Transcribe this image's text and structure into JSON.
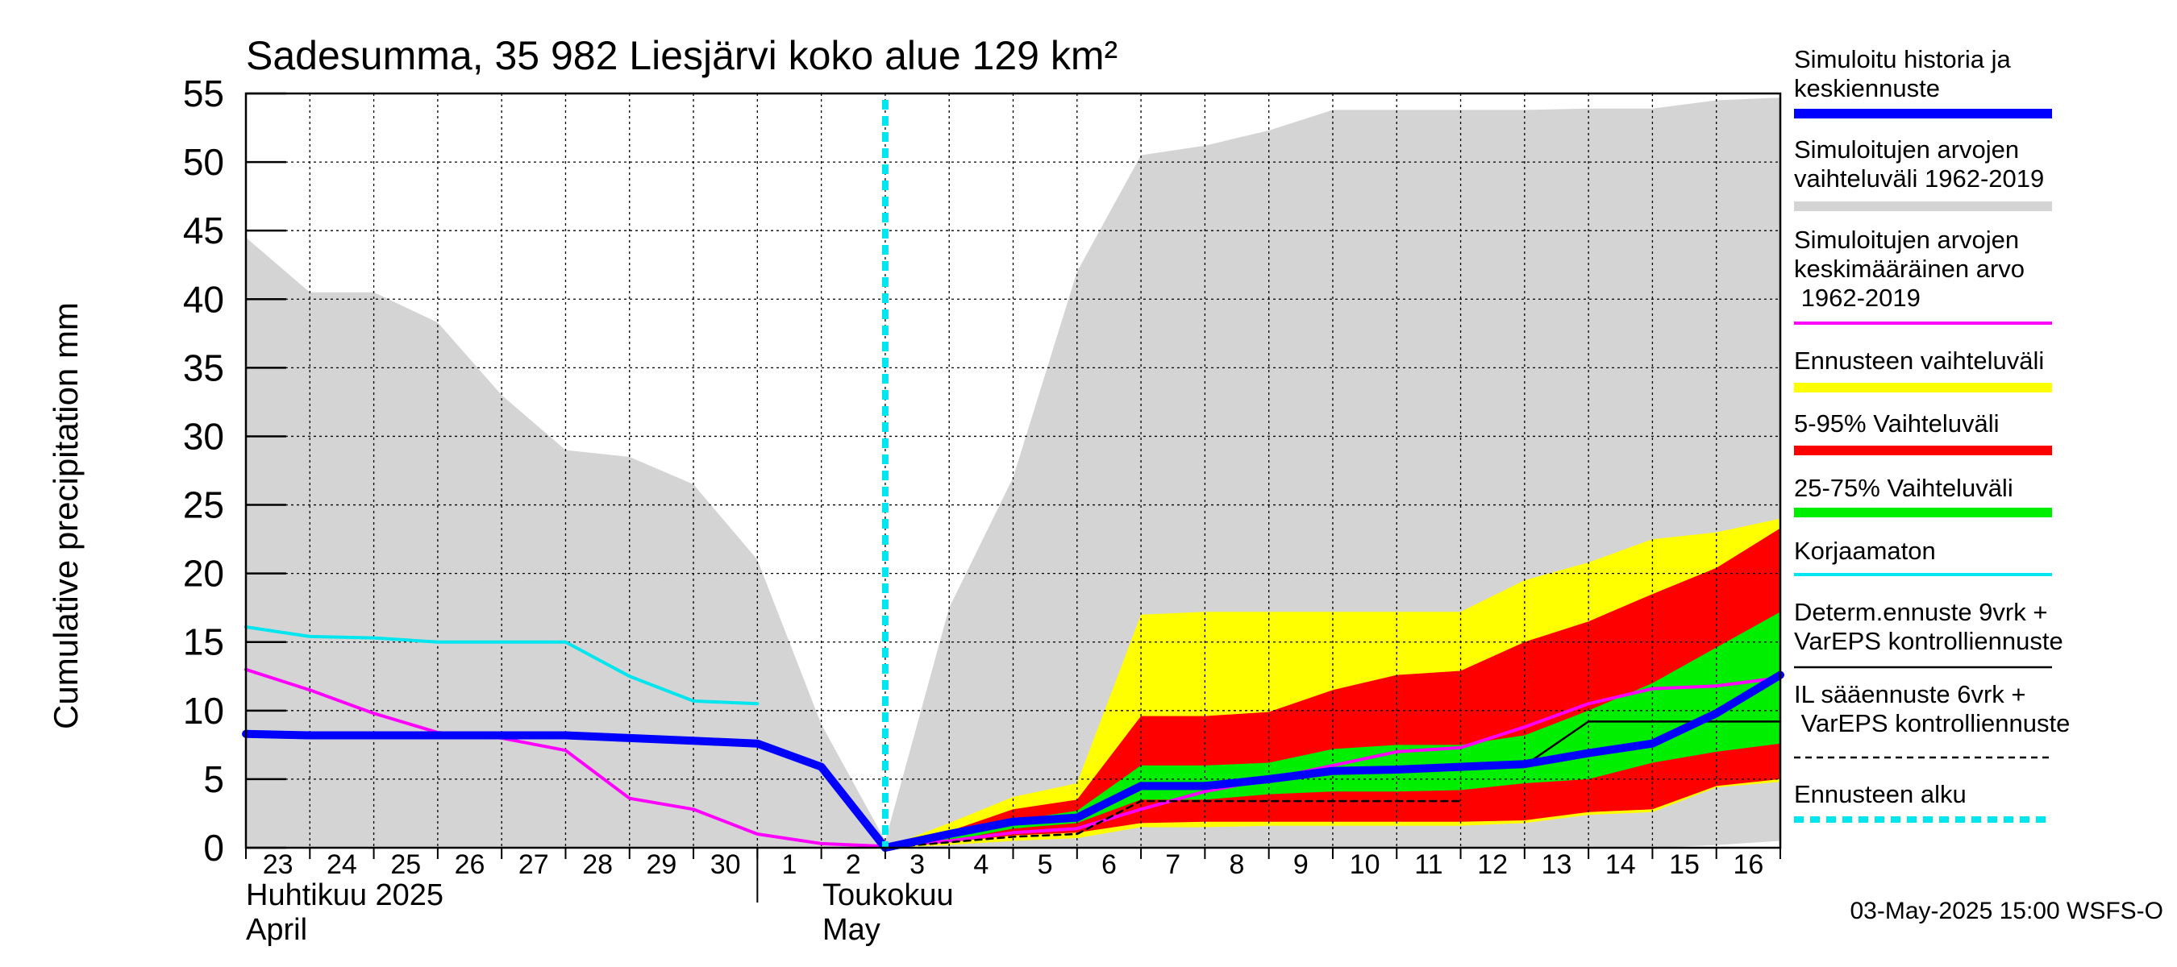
{
  "chart_data": {
    "type": "area",
    "title": "Sadesumma, 35 982 Liesjärvi koko alue 129 km²",
    "ylabel": "Cumulative precipitation   mm",
    "ylim": [
      0,
      55
    ],
    "yticks": [
      0,
      5,
      10,
      15,
      20,
      25,
      30,
      35,
      40,
      45,
      50,
      55
    ],
    "grid": true,
    "x_day_labels": [
      "23",
      "24",
      "25",
      "26",
      "27",
      "28",
      "29",
      "30",
      "1",
      "2",
      "3",
      "4",
      "5",
      "6",
      "7",
      "8",
      "9",
      "10",
      "11",
      "12",
      "13",
      "14",
      "15",
      "16"
    ],
    "month_labels": [
      {
        "line1": "Huhtikuu  2025",
        "line2": "April",
        "at": "2025-04-23"
      },
      {
        "line1": "Toukokuu",
        "line2": "May",
        "at": "2025-05-03"
      }
    ],
    "x_start": "2025-04-23",
    "x_end": "2025-05-17",
    "forecast_start": "2025-05-03",
    "timestamp": "03-May-2025 15:00 WSFS-O",
    "legend": [
      {
        "label": "Simuloitu historia ja keskiennuste",
        "color": "#0000ff",
        "style": "thick"
      },
      {
        "label": "Simuloitujen arvojen vaihteluväli 1962-2019",
        "color": "#d4d4d4",
        "style": "thick"
      },
      {
        "label": "Simuloitujen arvojen keskimääräinen arvo    1962-2019",
        "color": "#ff00ff",
        "style": "line"
      },
      {
        "label": "Ennusteen vaihteluväli",
        "color": "#ffff00",
        "style": "thick"
      },
      {
        "label": "5-95% Vaihteluväli",
        "color": "#ff0000",
        "style": "thick"
      },
      {
        "label": "25-75% Vaihteluväli",
        "color": "#00ee00",
        "style": "thick"
      },
      {
        "label": "Korjaamaton",
        "color": "#00e5ee",
        "style": "line"
      },
      {
        "label": "Determ.ennuste 9vrk + VarEPS kontrolliennuste",
        "color": "#000000",
        "style": "thin"
      },
      {
        "label": "IL sääennuste 6vrk  +   VarEPS kontrolliennuste",
        "color": "#000000",
        "style": "dashed"
      },
      {
        "label": "Ennusteen alku",
        "color": "#00e5ee",
        "style": "dotted"
      }
    ],
    "series": [
      {
        "key": "hist_range",
        "kind": "band",
        "x": [
          "2025-04-23",
          "2025-04-24",
          "2025-04-25",
          "2025-04-26",
          "2025-04-27",
          "2025-04-28",
          "2025-04-29",
          "2025-04-30",
          "2025-05-01",
          "2025-05-02",
          "2025-05-03",
          "2025-05-04",
          "2025-05-05",
          "2025-05-06",
          "2025-05-07",
          "2025-05-08",
          "2025-05-09",
          "2025-05-10",
          "2025-05-11",
          "2025-05-12",
          "2025-05-13",
          "2025-05-14",
          "2025-05-15",
          "2025-05-16",
          "2025-05-17"
        ],
        "upper": [
          44.5,
          40.5,
          40.5,
          38.3,
          33.0,
          29.0,
          28.5,
          26.5,
          21.0,
          9.0,
          0.5,
          17.5,
          27.0,
          42.0,
          50.5,
          51.2,
          52.3,
          53.8,
          53.8,
          53.8,
          53.8,
          53.9,
          53.9,
          54.5,
          54.7
        ],
        "lower": [
          0,
          0,
          0,
          0,
          0,
          0,
          0,
          0,
          0,
          0,
          0,
          0,
          0,
          0,
          0,
          0,
          0,
          0,
          0,
          0,
          0,
          0,
          0,
          0.2,
          0.5
        ]
      },
      {
        "key": "ens_range",
        "kind": "band",
        "x": [
          "2025-05-03",
          "2025-05-04",
          "2025-05-05",
          "2025-05-06",
          "2025-05-07",
          "2025-05-08",
          "2025-05-09",
          "2025-05-10",
          "2025-05-11",
          "2025-05-12",
          "2025-05-13",
          "2025-05-14",
          "2025-05-15",
          "2025-05-16",
          "2025-05-17"
        ],
        "upper": [
          0,
          1.8,
          3.7,
          4.7,
          17.0,
          17.2,
          17.2,
          17.2,
          17.2,
          17.2,
          19.5,
          20.8,
          22.5,
          23.0,
          24.0
        ],
        "lower": [
          0,
          0.2,
          0.5,
          0.7,
          1.5,
          1.5,
          1.6,
          1.6,
          1.6,
          1.6,
          1.8,
          2.4,
          2.6,
          4.4,
          4.8
        ]
      },
      {
        "key": "p5_95",
        "kind": "band",
        "x": [
          "2025-05-03",
          "2025-05-04",
          "2025-05-05",
          "2025-05-06",
          "2025-05-07",
          "2025-05-08",
          "2025-05-09",
          "2025-05-10",
          "2025-05-11",
          "2025-05-12",
          "2025-05-13",
          "2025-05-14",
          "2025-05-15",
          "2025-05-16",
          "2025-05-17"
        ],
        "upper": [
          0,
          1.2,
          2.8,
          3.5,
          9.6,
          9.6,
          9.9,
          11.5,
          12.6,
          12.9,
          15.0,
          16.5,
          18.5,
          20.4,
          23.3
        ],
        "lower": [
          0,
          0.4,
          0.9,
          1.1,
          1.8,
          1.9,
          1.9,
          1.9,
          1.9,
          1.9,
          2.0,
          2.6,
          2.8,
          4.5,
          5.0
        ]
      },
      {
        "key": "p25_75",
        "kind": "band",
        "x": [
          "2025-05-03",
          "2025-05-04",
          "2025-05-05",
          "2025-05-06",
          "2025-05-07",
          "2025-05-08",
          "2025-05-09",
          "2025-05-10",
          "2025-05-11",
          "2025-05-12",
          "2025-05-13",
          "2025-05-14",
          "2025-05-15",
          "2025-05-16",
          "2025-05-17"
        ],
        "upper": [
          0,
          0.8,
          2.0,
          2.7,
          6.0,
          6.0,
          6.2,
          7.2,
          7.5,
          7.5,
          8.2,
          10.0,
          12.0,
          14.6,
          17.2
        ],
        "lower": [
          0,
          0.5,
          1.4,
          1.8,
          3.5,
          3.5,
          3.9,
          4.1,
          4.1,
          4.2,
          4.7,
          5.0,
          6.2,
          7.0,
          7.6
        ]
      },
      {
        "key": "hist_mean",
        "kind": "line",
        "color": "#ff00ff",
        "x": [
          "2025-04-23",
          "2025-04-24",
          "2025-04-25",
          "2025-04-26",
          "2025-04-27",
          "2025-04-28",
          "2025-04-29",
          "2025-04-30",
          "2025-05-01",
          "2025-05-02",
          "2025-05-03",
          "2025-05-04",
          "2025-05-05",
          "2025-05-06",
          "2025-05-07",
          "2025-05-08",
          "2025-05-09",
          "2025-05-10",
          "2025-05-11",
          "2025-05-12",
          "2025-05-13",
          "2025-05-14",
          "2025-05-15",
          "2025-05-16",
          "2025-05-17"
        ],
        "y": [
          13.0,
          11.5,
          9.8,
          8.4,
          8.0,
          7.1,
          3.6,
          2.8,
          1.0,
          0.3,
          0.1,
          0.5,
          1.1,
          1.4,
          2.8,
          4.1,
          5.0,
          6.0,
          7.0,
          7.3,
          8.8,
          10.5,
          11.6,
          11.8,
          12.4
        ]
      },
      {
        "key": "uncorrected",
        "kind": "line",
        "color": "#00e5ee",
        "x": [
          "2025-04-23",
          "2025-04-24",
          "2025-04-25",
          "2025-04-26",
          "2025-04-27",
          "2025-04-28",
          "2025-04-29",
          "2025-04-30",
          "2025-05-01"
        ],
        "y": [
          16.1,
          15.4,
          15.3,
          15.0,
          15.0,
          15.0,
          12.5,
          10.7,
          10.5
        ]
      },
      {
        "key": "determ",
        "kind": "line",
        "color": "#000000",
        "x": [
          "2025-05-03",
          "2025-05-04",
          "2025-05-05",
          "2025-05-06",
          "2025-05-07",
          "2025-05-08",
          "2025-05-09",
          "2025-05-10",
          "2025-05-11",
          "2025-05-12",
          "2025-05-13",
          "2025-05-14",
          "2025-05-15",
          "2025-05-16",
          "2025-05-17"
        ],
        "y": [
          0,
          1.0,
          1.9,
          2.2,
          4.5,
          4.5,
          5.0,
          5.5,
          5.6,
          5.7,
          6.0,
          9.2,
          9.2,
          9.2,
          9.2
        ]
      },
      {
        "key": "il_forecast",
        "kind": "dashed",
        "color": "#000000",
        "x": [
          "2025-05-03",
          "2025-05-04",
          "2025-05-05",
          "2025-05-06",
          "2025-05-07",
          "2025-05-08",
          "2025-05-09",
          "2025-05-10",
          "2025-05-11",
          "2025-05-12"
        ],
        "y": [
          0,
          0.4,
          0.8,
          1.0,
          3.4,
          3.4,
          3.4,
          3.4,
          3.4,
          3.4
        ]
      },
      {
        "key": "sim_main",
        "kind": "line",
        "color": "#0000ff",
        "x": [
          "2025-04-23",
          "2025-04-24",
          "2025-04-25",
          "2025-04-26",
          "2025-04-27",
          "2025-04-28",
          "2025-04-29",
          "2025-04-30",
          "2025-05-01",
          "2025-05-02",
          "2025-05-03",
          "2025-05-04",
          "2025-05-05",
          "2025-05-06",
          "2025-05-07",
          "2025-05-08",
          "2025-05-09",
          "2025-05-10",
          "2025-05-11",
          "2025-05-12",
          "2025-05-13",
          "2025-05-14",
          "2025-05-15",
          "2025-05-16",
          "2025-05-17"
        ],
        "y": [
          8.3,
          8.2,
          8.2,
          8.2,
          8.2,
          8.2,
          8.0,
          7.8,
          7.6,
          5.9,
          0,
          1.0,
          1.9,
          2.2,
          4.5,
          4.5,
          5.0,
          5.6,
          5.7,
          5.9,
          6.1,
          6.9,
          7.6,
          9.8,
          12.6
        ]
      }
    ]
  }
}
